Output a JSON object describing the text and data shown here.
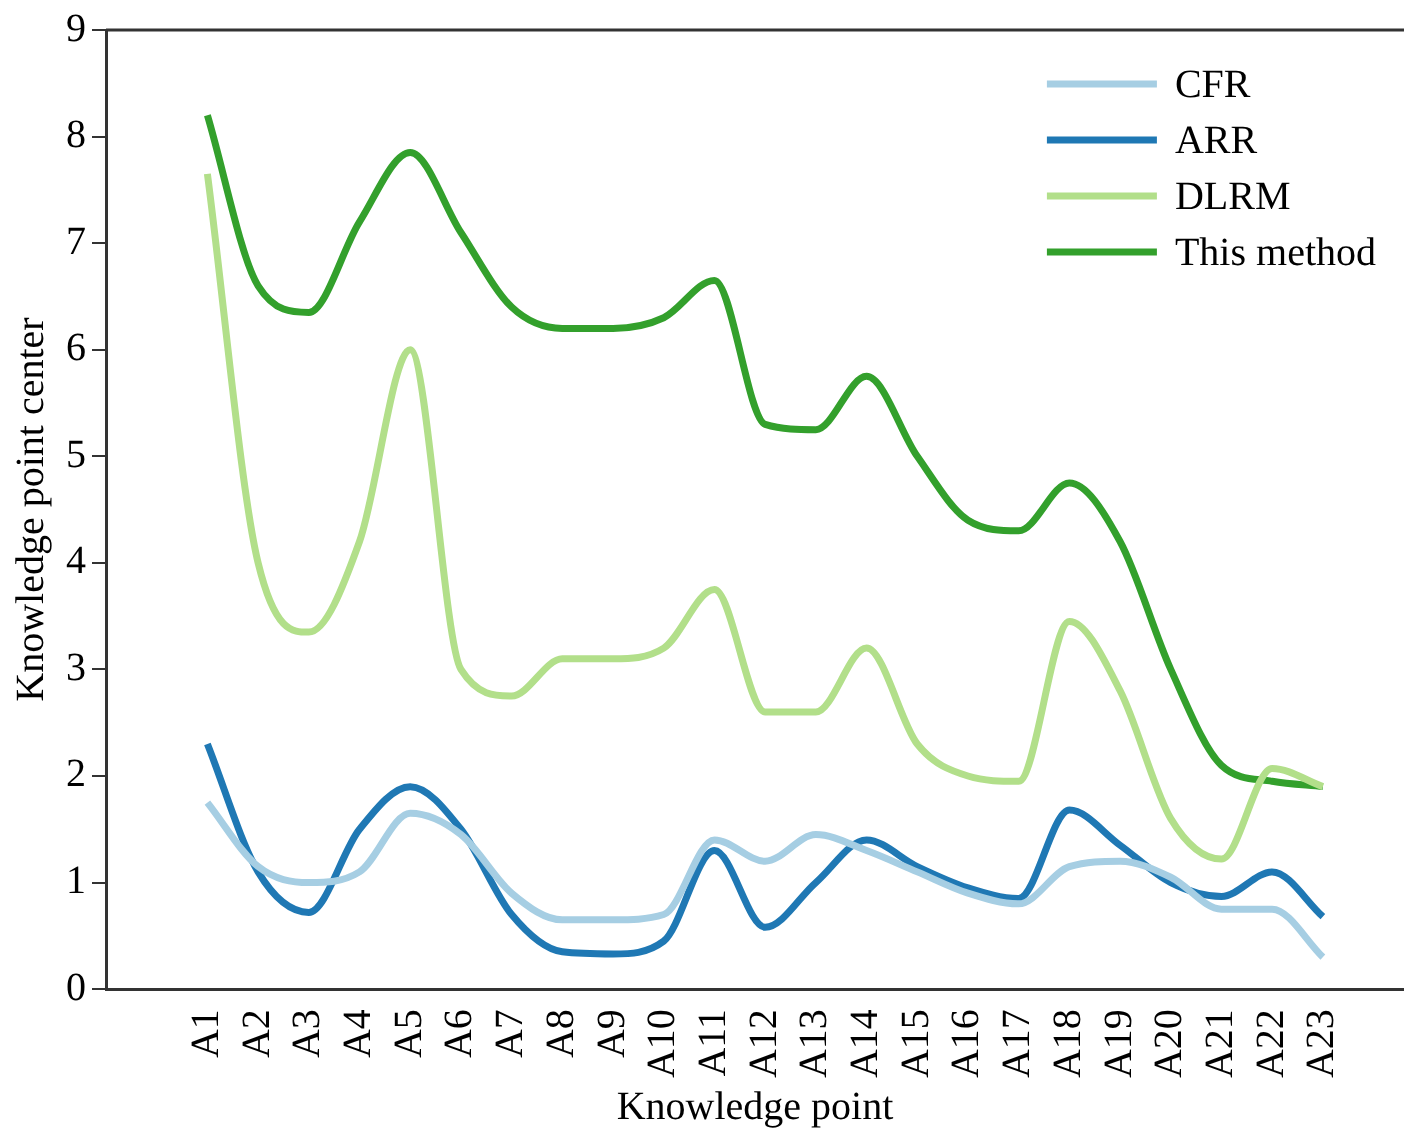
{
  "chart_data": {
    "type": "line",
    "xlabel": "Knowledge point",
    "ylabel": "Knowledge point center",
    "categories": [
      "A1",
      "A2",
      "A3",
      "A4",
      "A5",
      "A6",
      "A7",
      "A8",
      "A9",
      "A10",
      "A11",
      "A12",
      "A13",
      "A14",
      "A15",
      "A16",
      "A17",
      "A18",
      "A19",
      "A20",
      "A21",
      "A22",
      "A23"
    ],
    "series": [
      {
        "name": "CFR",
        "color": "#a6cee3",
        "values": [
          1.75,
          1.15,
          1.0,
          1.1,
          1.65,
          1.45,
          0.9,
          0.65,
          0.65,
          0.7,
          1.4,
          1.2,
          1.45,
          1.3,
          1.1,
          0.9,
          0.8,
          1.15,
          1.2,
          1.05,
          0.75,
          0.75,
          0.3
        ]
      },
      {
        "name": "ARR",
        "color": "#1f78b4",
        "values": [
          2.3,
          1.1,
          0.72,
          1.5,
          1.9,
          1.5,
          0.7,
          0.35,
          0.33,
          0.45,
          1.3,
          0.58,
          1.0,
          1.4,
          1.15,
          0.95,
          0.85,
          1.68,
          1.35,
          1.0,
          0.87,
          1.1,
          0.68
        ]
      },
      {
        "name": "DLRM",
        "color": "#b2df8a",
        "values": [
          7.65,
          4.0,
          3.35,
          4.2,
          6.0,
          3.0,
          2.75,
          3.1,
          3.1,
          3.2,
          3.75,
          2.6,
          2.6,
          3.2,
          2.3,
          2.0,
          1.95,
          3.45,
          2.8,
          1.6,
          1.22,
          2.07,
          1.9
        ]
      },
      {
        "name": "This method",
        "color": "#33a02c",
        "values": [
          8.2,
          6.6,
          6.35,
          7.2,
          7.85,
          7.1,
          6.4,
          6.2,
          6.2,
          6.3,
          6.65,
          5.3,
          5.25,
          5.75,
          5.0,
          4.4,
          4.3,
          4.75,
          4.2,
          3.0,
          2.1,
          1.95,
          1.9
        ]
      }
    ],
    "ylim": [
      0,
      9
    ],
    "yticks": [
      0,
      1,
      2,
      3,
      4,
      5,
      6,
      7,
      8,
      9
    ],
    "grid": false,
    "legend": "top right",
    "marker": "none",
    "line_style": "solid"
  }
}
